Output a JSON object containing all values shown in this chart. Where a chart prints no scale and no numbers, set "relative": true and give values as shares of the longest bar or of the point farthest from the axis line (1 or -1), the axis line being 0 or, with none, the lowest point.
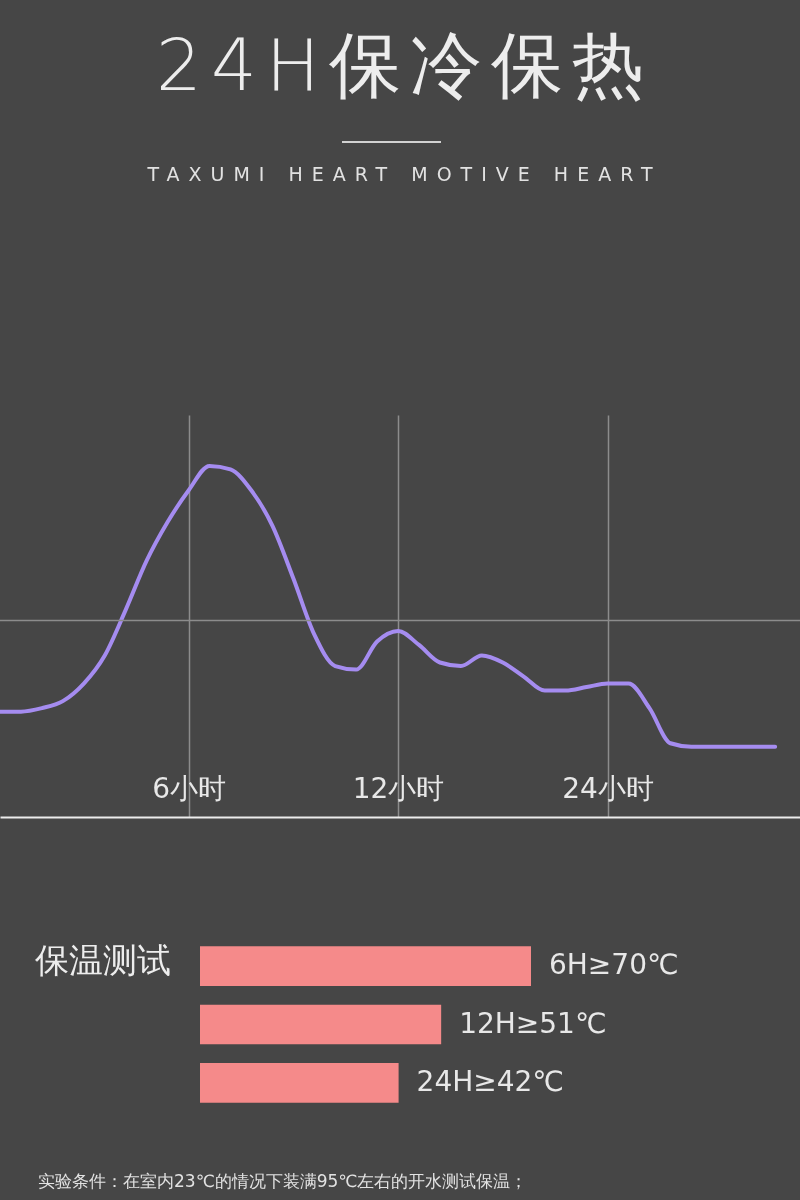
{
  "chart_data": [
    {
      "type": "line",
      "title": "24H保冷保热",
      "subtitle": "TAXUMI HEART MOTIVE HEART",
      "relative": true,
      "categories": [
        null,
        null,
        null,
        null,
        null,
        null,
        null,
        null,
        null,
        "6小时",
        null,
        null,
        null,
        null,
        null,
        null,
        null,
        null,
        null,
        "12小时",
        null,
        null,
        null,
        null,
        null,
        null,
        null,
        null,
        null,
        "24小时",
        null,
        null,
        null,
        null,
        null,
        null,
        null,
        null
      ],
      "values": [
        0.3,
        0.3,
        0.31,
        0.33,
        0.38,
        0.46,
        0.59,
        0.73,
        0.84,
        0.93,
        1,
        0.99,
        0.93,
        0.83,
        0.68,
        0.52,
        0.43,
        0.42,
        0.5,
        0.53,
        0.49,
        0.44,
        0.43,
        0.46,
        0.44,
        0.4,
        0.36,
        0.36,
        0.37,
        0.38,
        0.38,
        0.31,
        0.21,
        0.2,
        0.2,
        0.2,
        0.2,
        0.2
      ],
      "color": "#a58cf0",
      "grid": "x",
      "ref_lines": [
        {
          "axis": "y",
          "value": 0.56,
          "color": "#8c8c8c"
        }
      ]
    },
    {
      "type": "bar",
      "orientation": "horizontal",
      "title": "保温测试",
      "categories": [
        null,
        null,
        null
      ],
      "values": [
        70,
        51,
        42
      ],
      "value_labels": [
        "6H≥70℃",
        "12H≥51℃",
        "24H≥42℃"
      ],
      "color": "#f58a8a",
      "annotations": [
        "实验条件：在室内23℃的情况下装满95℃左右的开水测试保温；"
      ]
    }
  ]
}
